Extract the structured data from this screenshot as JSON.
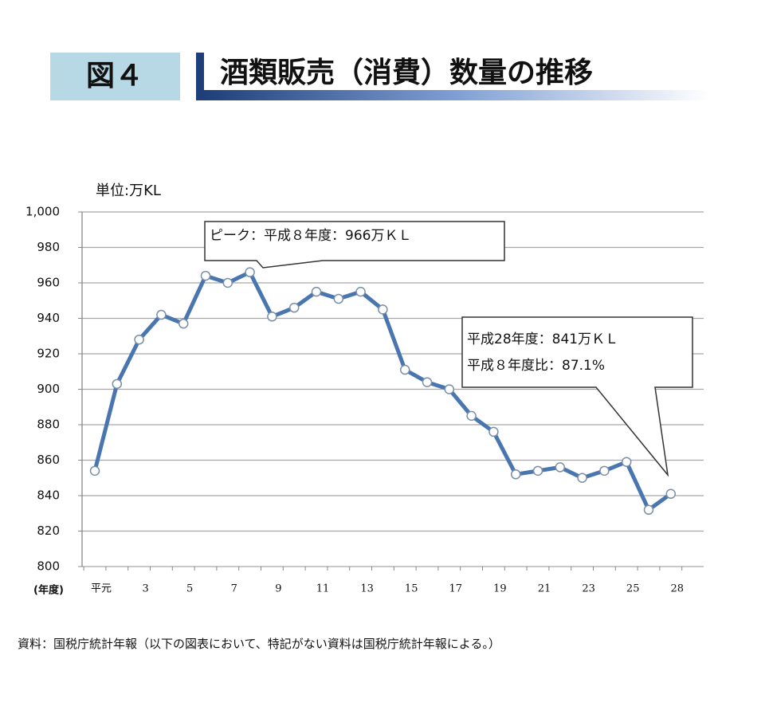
{
  "header": {
    "figure_label": "図４",
    "title": "酒類販売（消費）数量の推移"
  },
  "chart_data": {
    "type": "line",
    "unit_label": "単位:万KL",
    "x_label": "(年度)",
    "categories": [
      "平元",
      null,
      "3",
      null,
      "5",
      null,
      "7",
      null,
      "9",
      null,
      "11",
      null,
      "13",
      null,
      "15",
      null,
      "17",
      null,
      "19",
      null,
      "21",
      null,
      "23",
      null,
      "25",
      null,
      "28"
    ],
    "values": [
      854,
      903,
      928,
      942,
      937,
      964,
      960,
      966,
      941,
      946,
      955,
      951,
      955,
      945,
      911,
      904,
      900,
      885,
      876,
      852,
      854,
      856,
      850,
      854,
      859,
      832,
      841
    ],
    "color": "#4a76b0",
    "ylim": [
      800,
      1000
    ],
    "yticks": [
      800,
      820,
      840,
      860,
      880,
      900,
      920,
      940,
      960,
      980,
      {
        "value": 1000,
        "label": "1,000"
      }
    ],
    "grid": true,
    "annotations": [
      "ピーク：平成８年度：966万ＫＬ",
      "平成28年度：841万ＫＬ",
      "平成８年度比：87.1%"
    ]
  },
  "footer": {
    "source": "資料：国税庁統計年報（以下の図表において、特記がない資料は国税庁統計年報による。）"
  }
}
